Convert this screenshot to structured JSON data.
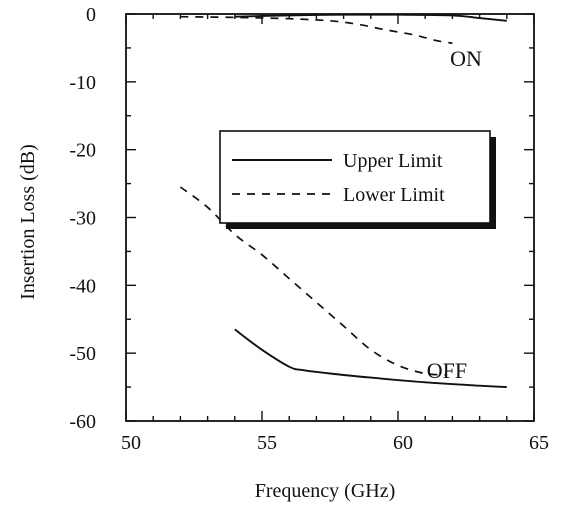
{
  "chart_data": {
    "type": "line",
    "title": "",
    "xlabel": "Frequency (GHz)",
    "ylabel": "Insertion Loss (dB)",
    "xlim": [
      50,
      65
    ],
    "ylim": [
      -60,
      0
    ],
    "xticks": [
      50,
      55,
      60,
      65
    ],
    "yticks": [
      0,
      -10,
      -20,
      -30,
      -40,
      -50,
      -60
    ],
    "x_tick_labels": [
      "50",
      "55",
      "60",
      "65"
    ],
    "y_tick_labels": [
      "0",
      "-10",
      "-20",
      "-30",
      "-40",
      "-50",
      "-60"
    ],
    "grid": false,
    "legend": {
      "placement": "center-right",
      "entries": [
        {
          "label": "Upper Limit",
          "style": "solid"
        },
        {
          "label": "Lower Limit",
          "style": "dashed"
        }
      ]
    },
    "annotations": [
      {
        "text": "ON",
        "x": 62.5,
        "y": -6.5
      },
      {
        "text": "OFF",
        "x": 61.8,
        "y": -52.5
      }
    ],
    "series": [
      {
        "id": "upper-on",
        "legend_ref": "Upper Limit",
        "style": "solid",
        "points": [
          [
            54,
            -0.4
          ],
          [
            56,
            -0.2
          ],
          [
            58,
            -0.1
          ],
          [
            60,
            -0.1
          ],
          [
            62,
            -0.2
          ],
          [
            63,
            -0.6
          ],
          [
            64,
            -1.0
          ]
        ]
      },
      {
        "id": "lower-on",
        "legend_ref": "Lower Limit",
        "style": "dashed",
        "points": [
          [
            52,
            -0.4
          ],
          [
            54,
            -0.5
          ],
          [
            56,
            -0.7
          ],
          [
            57.5,
            -1.0
          ],
          [
            58.5,
            -1.5
          ],
          [
            59.5,
            -2.3
          ],
          [
            60.5,
            -3.0
          ],
          [
            61,
            -3.5
          ],
          [
            61.5,
            -4.0
          ],
          [
            62,
            -4.3
          ]
        ]
      },
      {
        "id": "lower-off",
        "legend_ref": "Lower Limit",
        "style": "dashed",
        "points": [
          [
            52,
            -25.5
          ],
          [
            53,
            -28.5
          ],
          [
            54,
            -32.5
          ],
          [
            55,
            -35.5
          ],
          [
            56,
            -39.0
          ],
          [
            57,
            -42.5
          ],
          [
            58,
            -46.0
          ],
          [
            59,
            -49.5
          ],
          [
            60,
            -51.8
          ],
          [
            61,
            -53.0
          ],
          [
            61.8,
            -53.2
          ]
        ]
      },
      {
        "id": "upper-off",
        "legend_ref": "Upper Limit",
        "style": "solid",
        "points": [
          [
            54,
            -46.5
          ],
          [
            55,
            -49.5
          ],
          [
            56,
            -52.0
          ],
          [
            56.5,
            -52.5
          ],
          [
            57.5,
            -53.0
          ],
          [
            59,
            -53.6
          ],
          [
            61,
            -54.3
          ],
          [
            63,
            -54.8
          ],
          [
            64,
            -55.0
          ]
        ]
      }
    ]
  }
}
